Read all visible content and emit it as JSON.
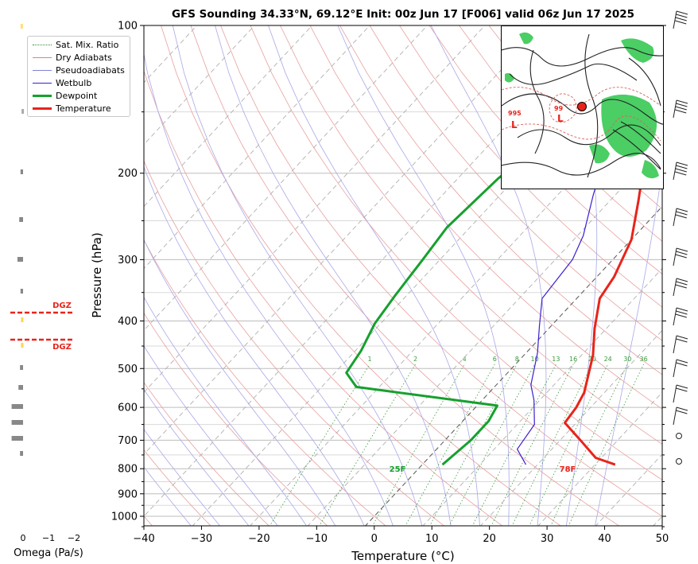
{
  "title": "GFS Sounding 34.33°N, 69.12°E Init: 00z Jun 17 [F006] valid 06z Jun 17 2025",
  "legend": [
    {
      "label": "Sat. Mix. Ratio",
      "color": "#2e8b2e",
      "style": "dotted"
    },
    {
      "label": "Dry Adiabats",
      "color": "#e08080",
      "style": "solid"
    },
    {
      "label": "Pseudoadiabats",
      "color": "#8080d8",
      "style": "solid"
    },
    {
      "label": "Wetbulb",
      "color": "#3a1fd0",
      "style": "solid"
    },
    {
      "label": "Dewpoint",
      "color": "#16a02e",
      "style": "thick"
    },
    {
      "label": "Temperature",
      "color": "#e8241a",
      "style": "thick"
    }
  ],
  "dgz_label": "DGZ",
  "dgz_color": "#e8241a",
  "omega_label": "Omega (Pa/s)",
  "omega_ticks": [
    "0",
    "−1",
    "−2"
  ],
  "surface_labels": {
    "dewpoint": "25F",
    "temperature": "78F"
  },
  "inset_map": {
    "labels": [
      "995",
      "L",
      "99",
      "L"
    ],
    "marker_color": "#e8241a"
  },
  "chart_data": {
    "type": "line",
    "x_axis": {
      "label": "Temperature (°C)",
      "range": [
        -40,
        50
      ],
      "ticks": [
        -40,
        -30,
        -20,
        -10,
        0,
        10,
        20,
        30,
        40,
        50
      ]
    },
    "y_axis": {
      "label": "Pressure (hPa)",
      "range": [
        1050,
        100
      ],
      "scale": "log",
      "ticks": [
        100,
        200,
        300,
        400,
        500,
        600,
        700,
        800,
        900,
        1000
      ]
    },
    "skew": "skew-T",
    "mixing_ratio_labels": [
      "1",
      "2",
      "4",
      "6",
      "8",
      "10",
      "13",
      "16",
      "20",
      "24",
      "30",
      "36"
    ],
    "series": [
      {
        "name": "Temperature",
        "color": "#e8241a",
        "points": [
          [
            33.5,
            785
          ],
          [
            29,
            760
          ],
          [
            24,
            705
          ],
          [
            18,
            645
          ],
          [
            17.5,
            600
          ],
          [
            16.5,
            560
          ],
          [
            12,
            470
          ],
          [
            8,
            415
          ],
          [
            4,
            360
          ],
          [
            3,
            325
          ],
          [
            0,
            273
          ],
          [
            -5,
            228
          ],
          [
            -11,
            185
          ],
          [
            -14,
            146
          ],
          [
            -15,
            122
          ],
          [
            -15.5,
            100
          ]
        ]
      },
      {
        "name": "Dewpoint",
        "color": "#16a02e",
        "points": [
          [
            3.5,
            785
          ],
          [
            4.5,
            700
          ],
          [
            4.5,
            640
          ],
          [
            3.5,
            595
          ],
          [
            -24,
            545
          ],
          [
            -28,
            510
          ],
          [
            -29,
            460
          ],
          [
            -31,
            405
          ],
          [
            -32,
            355
          ],
          [
            -33,
            300
          ],
          [
            -34,
            258
          ],
          [
            -33,
            205
          ],
          [
            -30,
            157
          ],
          [
            -25,
            120
          ],
          [
            -18,
            100
          ]
        ]
      },
      {
        "name": "Wetbulb",
        "color": "#3a1fd0",
        "points": [
          [
            18,
            785
          ],
          [
            14,
            730
          ],
          [
            13,
            650
          ],
          [
            9,
            580
          ],
          [
            6,
            540
          ],
          [
            2,
            465
          ],
          [
            -2,
            410
          ],
          [
            -6,
            360
          ],
          [
            -7,
            300
          ],
          [
            -9,
            268
          ],
          [
            -14,
            220
          ],
          [
            -19,
            175
          ],
          [
            -21,
            150
          ]
        ]
      }
    ]
  }
}
